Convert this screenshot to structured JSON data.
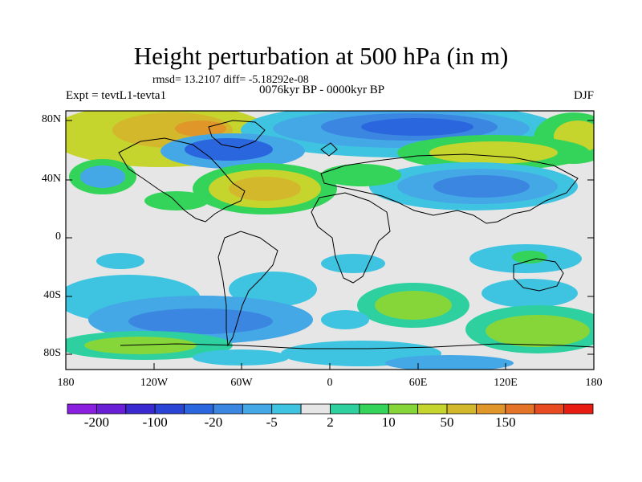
{
  "title": "Height perturbation at 500 hPa (in m)",
  "stats": "rmsd= 13.2107  diff= -5.18292e-08",
  "expt": "Expt = tevtL1-tevta1",
  "period": "0076kyr BP - 0000kyr BP",
  "season": "DJF",
  "lat_ticks": [
    "80N",
    "40N",
    "0",
    "40S",
    "80S"
  ],
  "lon_ticks": [
    "180",
    "120W",
    "60W",
    "0",
    "60E",
    "120E",
    "180"
  ],
  "colorbar": {
    "colors": [
      "#8a1fe0",
      "#6a1fd6",
      "#3a28d0",
      "#2a44d6",
      "#2a66de",
      "#3a86e0",
      "#44a8e6",
      "#3ec4e0",
      "#e6e6e6",
      "#2ed0a0",
      "#34d45a",
      "#86d63a",
      "#c6d42e",
      "#d4b82c",
      "#e09628",
      "#e47428",
      "#e84a22",
      "#e81c10"
    ],
    "labels": [
      "-200",
      "-100",
      "-20",
      "-5",
      "2",
      "10",
      "50",
      "150"
    ]
  }
}
